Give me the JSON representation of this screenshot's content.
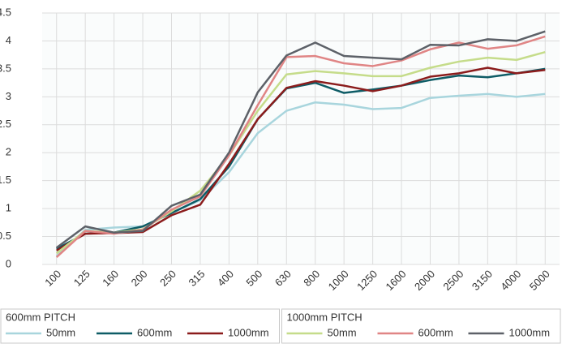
{
  "chart_data": {
    "type": "line",
    "categories": [
      "100",
      "125",
      "160",
      "200",
      "250",
      "315",
      "400",
      "500",
      "630",
      "800",
      "1000",
      "1250",
      "1600",
      "2000",
      "2500",
      "3150",
      "4000",
      "5000"
    ],
    "ylim": [
      0,
      4.5
    ],
    "yticks": [
      0,
      0.5,
      1,
      1.5,
      2,
      2.5,
      3,
      3.5,
      4,
      4.5
    ],
    "grid": true,
    "legend_groups": [
      "600mm PITCH",
      "1000mm PITCH"
    ],
    "series": [
      {
        "name": "50mm",
        "color": "#a8d5dd",
        "values": [
          0.15,
          0.62,
          0.66,
          0.68,
          0.92,
          1.15,
          1.65,
          2.35,
          2.75,
          2.9,
          2.86,
          2.78,
          2.8,
          2.98,
          3.02,
          3.05,
          3.0,
          3.05
        ]
      },
      {
        "name": "600mm",
        "color": "#0e5c66",
        "values": [
          0.28,
          0.55,
          0.57,
          0.68,
          0.92,
          1.17,
          1.75,
          2.6,
          3.15,
          3.25,
          3.07,
          3.13,
          3.2,
          3.3,
          3.38,
          3.35,
          3.42,
          3.5
        ]
      },
      {
        "name": "1000mm",
        "color": "#8b1c1c",
        "values": [
          0.25,
          0.55,
          0.56,
          0.58,
          0.88,
          1.07,
          1.8,
          2.6,
          3.16,
          3.28,
          3.2,
          3.1,
          3.2,
          3.36,
          3.42,
          3.52,
          3.42,
          3.48
        ]
      },
      {
        "name": "50mm",
        "color": "#c5dc8a",
        "values": [
          0.2,
          0.6,
          0.57,
          0.63,
          0.95,
          1.32,
          1.95,
          2.75,
          3.4,
          3.46,
          3.42,
          3.37,
          3.37,
          3.52,
          3.63,
          3.7,
          3.66,
          3.8
        ]
      },
      {
        "name": "600mm",
        "color": "#e08585",
        "values": [
          0.13,
          0.6,
          0.55,
          0.62,
          0.98,
          1.22,
          1.95,
          2.85,
          3.71,
          3.73,
          3.6,
          3.55,
          3.65,
          3.85,
          3.97,
          3.86,
          3.92,
          4.08
        ]
      },
      {
        "name": "1000mm",
        "color": "#5d6168",
        "values": [
          0.3,
          0.68,
          0.57,
          0.6,
          1.05,
          1.25,
          2.0,
          3.08,
          3.74,
          3.97,
          3.73,
          3.7,
          3.67,
          3.93,
          3.92,
          4.03,
          4.0,
          4.17
        ]
      }
    ]
  }
}
